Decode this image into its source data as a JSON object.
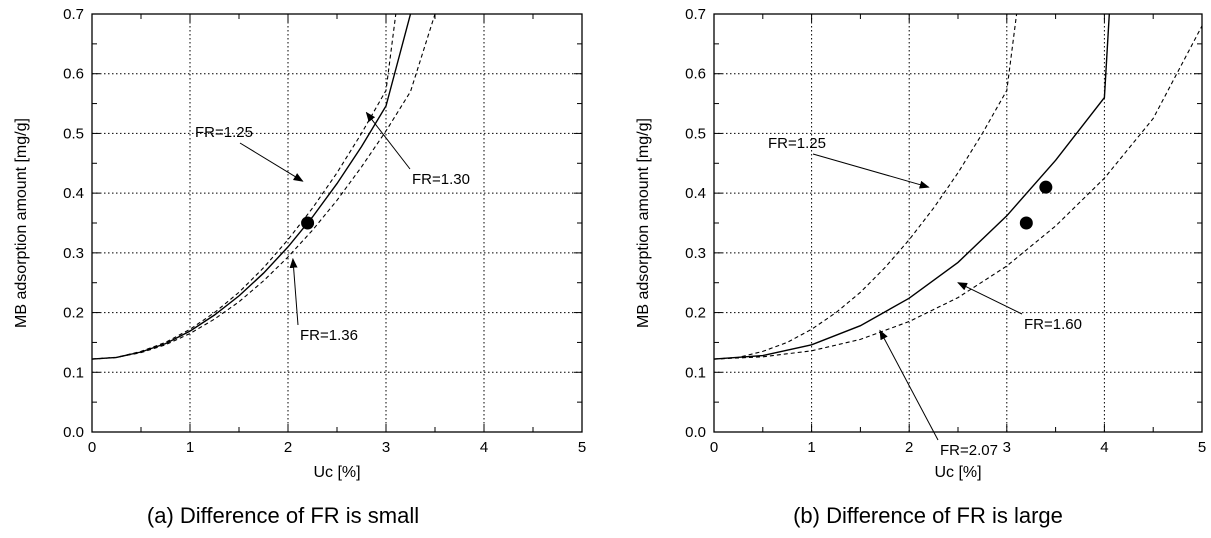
{
  "chart_data": [
    {
      "type": "line",
      "caption": "(a) Difference of FR is small",
      "xlabel": "Uc [%]",
      "ylabel": "MB adsorption amount [mg/g]",
      "xlim": [
        0,
        5
      ],
      "ylim": [
        0,
        0.7
      ],
      "xticks": [
        "0",
        "1",
        "2",
        "3",
        "4",
        "5"
      ],
      "yticks": [
        "0.0",
        "0.1",
        "0.2",
        "0.3",
        "0.4",
        "0.5",
        "0.6",
        "0.7"
      ],
      "grid": true,
      "series": [
        {
          "name": "FR=1.25",
          "style": "dashed",
          "x": [
            0,
            0.25,
            0.5,
            0.75,
            1.0,
            1.25,
            1.5,
            1.75,
            2.0,
            2.25,
            2.5,
            2.75,
            3.0,
            3.1
          ],
          "y": [
            0.122,
            0.125,
            0.135,
            0.15,
            0.172,
            0.2,
            0.234,
            0.275,
            0.322,
            0.375,
            0.434,
            0.5,
            0.572,
            0.7
          ]
        },
        {
          "name": "FR=1.30",
          "style": "solid",
          "x": [
            0,
            0.25,
            0.5,
            0.75,
            1.0,
            1.25,
            1.5,
            1.75,
            2.0,
            2.25,
            2.5,
            2.75,
            3.0,
            3.25
          ],
          "y": [
            0.122,
            0.125,
            0.134,
            0.148,
            0.169,
            0.196,
            0.228,
            0.266,
            0.31,
            0.36,
            0.416,
            0.478,
            0.546,
            0.7
          ]
        },
        {
          "name": "FR=1.36",
          "style": "dashed",
          "x": [
            0,
            0.25,
            0.5,
            0.75,
            1.0,
            1.25,
            1.5,
            1.75,
            2.0,
            2.25,
            2.5,
            2.75,
            3.0,
            3.25,
            3.5
          ],
          "y": [
            0.122,
            0.125,
            0.133,
            0.146,
            0.165,
            0.189,
            0.218,
            0.253,
            0.293,
            0.338,
            0.388,
            0.444,
            0.504,
            0.57,
            0.7
          ]
        }
      ],
      "points": [
        {
          "x": 2.2,
          "y": 0.35
        }
      ],
      "annotations": [
        {
          "text": "FR=1.25",
          "target": [
            2.15,
            0.42
          ]
        },
        {
          "text": "FR=1.30",
          "target": [
            2.8,
            0.535
          ]
        },
        {
          "text": "FR=1.36",
          "target": [
            2.05,
            0.29
          ]
        }
      ]
    },
    {
      "type": "line",
      "caption": "(b) Difference of FR is large",
      "xlabel": "Uc [%]",
      "ylabel": "MB adsorption amount [mg/g]",
      "xlim": [
        0,
        5
      ],
      "ylim": [
        0,
        0.7
      ],
      "xticks": [
        "0",
        "1",
        "2",
        "3",
        "4",
        "5"
      ],
      "yticks": [
        "0.0",
        "0.1",
        "0.2",
        "0.3",
        "0.4",
        "0.5",
        "0.6",
        "0.7"
      ],
      "grid": true,
      "series": [
        {
          "name": "FR=1.25",
          "style": "dashed",
          "x": [
            0,
            0.25,
            0.5,
            0.75,
            1.0,
            1.25,
            1.5,
            1.75,
            2.0,
            2.25,
            2.5,
            2.75,
            3.0,
            3.1
          ],
          "y": [
            0.122,
            0.125,
            0.135,
            0.15,
            0.172,
            0.2,
            0.234,
            0.275,
            0.322,
            0.375,
            0.434,
            0.5,
            0.572,
            0.7
          ]
        },
        {
          "name": "FR=1.60",
          "style": "solid",
          "x": [
            0,
            0.5,
            1.0,
            1.5,
            2.0,
            2.5,
            3.0,
            3.5,
            4.0,
            4.05
          ],
          "y": [
            0.122,
            0.128,
            0.146,
            0.178,
            0.224,
            0.284,
            0.362,
            0.455,
            0.56,
            0.7
          ]
        },
        {
          "name": "FR=2.07",
          "style": "dashed",
          "x": [
            0,
            0.5,
            1.0,
            1.5,
            2.0,
            2.5,
            3.0,
            3.5,
            4.0,
            4.5,
            5.0
          ],
          "y": [
            0.122,
            0.126,
            0.136,
            0.155,
            0.185,
            0.225,
            0.278,
            0.345,
            0.425,
            0.525,
            0.68
          ]
        }
      ],
      "points": [
        {
          "x": 3.2,
          "y": 0.35
        },
        {
          "x": 3.4,
          "y": 0.41
        }
      ],
      "annotations": [
        {
          "text": "FR=1.25",
          "target": [
            2.2,
            0.41
          ]
        },
        {
          "text": "FR=1.60",
          "target": [
            2.5,
            0.25
          ]
        },
        {
          "text": "FR=2.07",
          "target": [
            1.7,
            0.17
          ]
        }
      ]
    }
  ]
}
